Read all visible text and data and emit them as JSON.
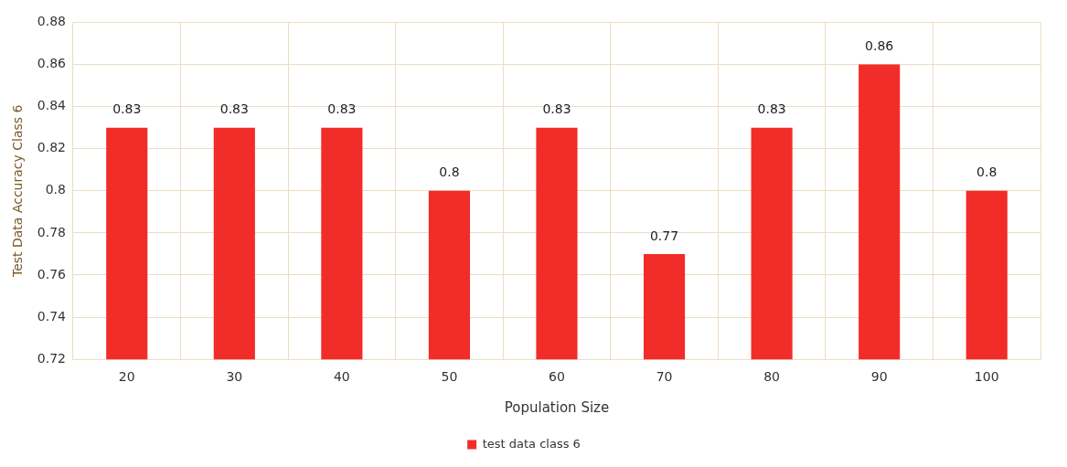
{
  "chart_data": {
    "type": "bar",
    "xlabel": "Population Size",
    "ylabel": "Test Data Accuracy Class 6",
    "categories": [
      "20",
      "30",
      "40",
      "50",
      "60",
      "70",
      "80",
      "90",
      "100"
    ],
    "series": [
      {
        "name": "test data class 6",
        "color": "#f22c28",
        "values": [
          0.83,
          0.83,
          0.83,
          0.8,
          0.83,
          0.77,
          0.83,
          0.86,
          0.8
        ]
      }
    ],
    "ylim": [
      0.72,
      0.88
    ],
    "yticks": [
      0.72,
      0.74,
      0.76,
      0.78,
      0.8,
      0.82,
      0.84,
      0.86,
      0.88
    ],
    "grid": true,
    "legend": "bottom",
    "data_labels": true
  }
}
